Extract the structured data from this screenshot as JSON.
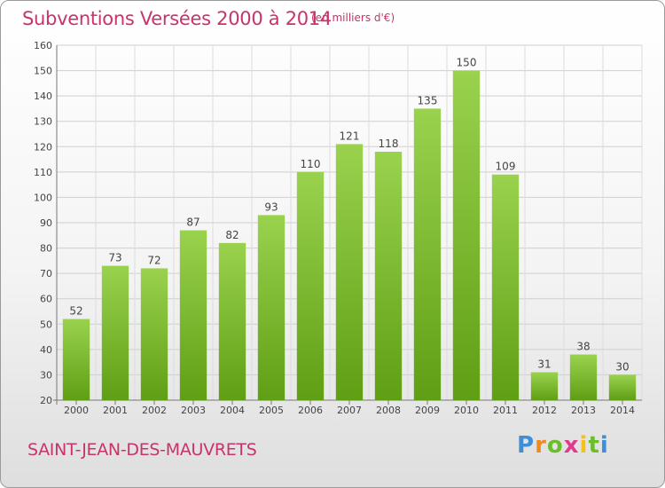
{
  "header": {
    "title": "Subventions Versées 2000 à 2014",
    "unit": "(en milliers d'€)"
  },
  "footer": {
    "place": "SAINT-JEAN-DES-MAUVRETS",
    "brand": "Proxiti"
  },
  "colors": {
    "bar_top": "#9ad24e",
    "bar_bottom": "#5f9f14",
    "text_accent": "#c8336b",
    "grid": "#cfcfcf"
  },
  "chart_data": {
    "type": "bar",
    "title": "Subventions Versées 2000 à 2014",
    "subtitle": "(en milliers d'€)",
    "categories": [
      "2000",
      "2001",
      "2002",
      "2003",
      "2004",
      "2005",
      "2006",
      "2007",
      "2008",
      "2009",
      "2010",
      "2011",
      "2012",
      "2013",
      "2014"
    ],
    "values": [
      52,
      73,
      72,
      87,
      82,
      93,
      110,
      121,
      118,
      135,
      150,
      109,
      31,
      38,
      30
    ],
    "ylim": [
      20,
      160
    ],
    "yticks": [
      20,
      30,
      40,
      50,
      60,
      70,
      80,
      90,
      100,
      110,
      120,
      130,
      140,
      150,
      160
    ],
    "grid": true,
    "data_labels": true
  }
}
